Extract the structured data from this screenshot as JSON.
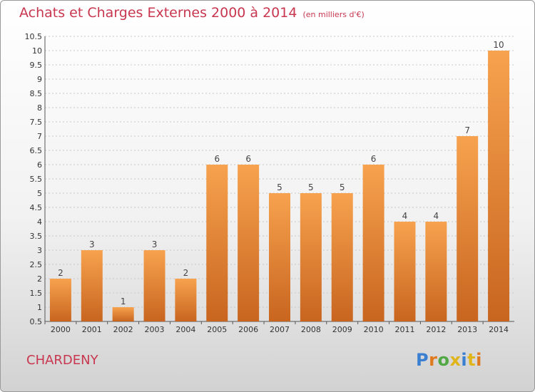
{
  "title": "Achats et Charges Externes 2000 à 2014",
  "unit_note": "(en milliers d'€)",
  "town": "CHARDENY",
  "logo": {
    "text": "Proxiti",
    "colors": [
      "#3b7fd0",
      "#e07a1f",
      "#52a845",
      "#e0b51a",
      "#3b7fd0",
      "#e0b51a",
      "#e07a1f"
    ]
  },
  "colors": {
    "title": "#c8374f",
    "bar_top": "#f7a24e",
    "bar_bottom": "#c8651f",
    "grid": "#c8c8c8"
  },
  "chart_data": {
    "type": "bar",
    "categories": [
      "2000",
      "2001",
      "2002",
      "2003",
      "2004",
      "2005",
      "2006",
      "2007",
      "2008",
      "2009",
      "2010",
      "2011",
      "2012",
      "2013",
      "2014"
    ],
    "values": [
      2,
      3,
      1,
      3,
      2,
      6,
      6,
      5,
      5,
      5,
      6,
      4,
      4,
      7,
      10
    ],
    "ylim": [
      0.5,
      10.5
    ],
    "yticks": [
      "0.5",
      "1",
      "1.5",
      "2",
      "2.5",
      "3",
      "3.5",
      "4",
      "4.5",
      "5",
      "5.5",
      "6",
      "6.5",
      "7",
      "7.5",
      "8",
      "8.5",
      "9",
      "9.5",
      "10",
      "10.5"
    ],
    "grid": true
  }
}
